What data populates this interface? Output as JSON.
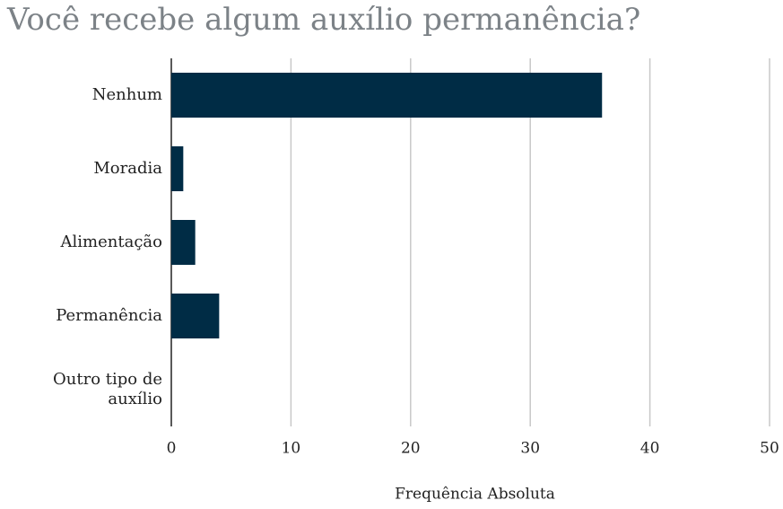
{
  "chart_data": {
    "type": "bar",
    "orientation": "horizontal",
    "title": "Você recebe algum auxílio permanência?",
    "x_label": "Frequência Absoluta",
    "categories": [
      "Nenhum",
      "Moradia",
      "Alimentação",
      "Permanência",
      "Outro tipo de auxílio"
    ],
    "values": [
      36,
      1,
      2,
      4,
      0
    ],
    "color": "#002c45",
    "xlim": [
      0,
      50
    ],
    "xticks": [
      0,
      10,
      20,
      30,
      40,
      50
    ],
    "grid": true
  }
}
